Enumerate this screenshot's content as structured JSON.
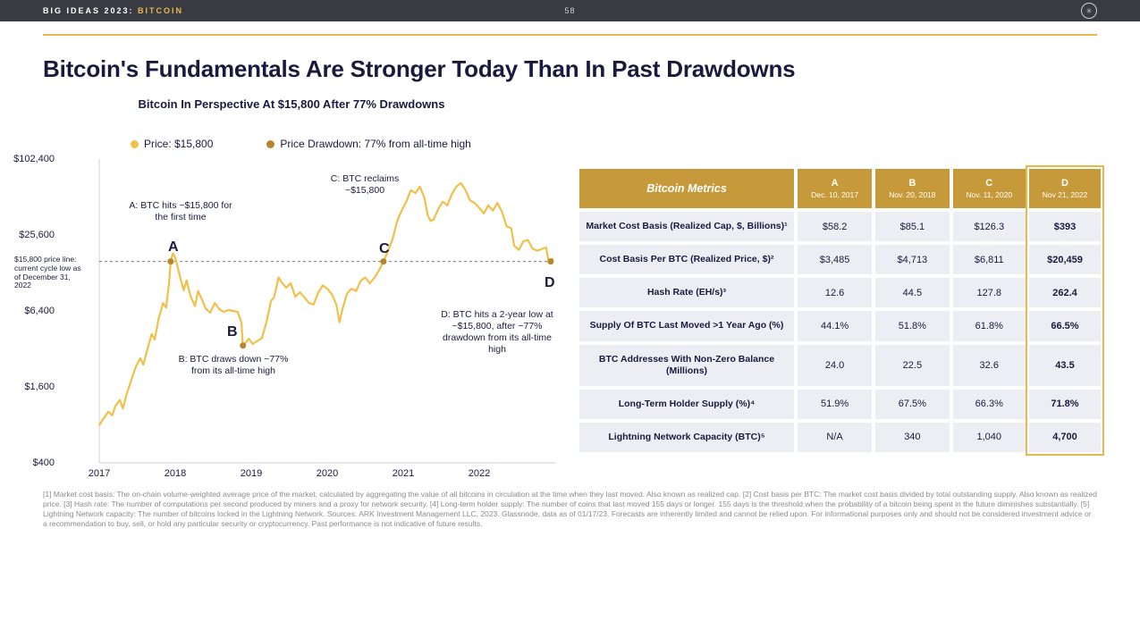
{
  "header": {
    "series": "BIG IDEAS 2023",
    "topic": "BITCOIN",
    "page": "58"
  },
  "title": "Bitcoin's Fundamentals Are Stronger Today Than In Past Drawdowns",
  "chart": {
    "type": "line",
    "title": "Bitcoin In Perspective At $15,800 After 77% Drawdowns",
    "legend_price": "Price: $15,800",
    "legend_drawdown": "Price Drawdown: 77% from all-time high",
    "price_color": "#f0c04a",
    "drawdown_color": "#b5872a",
    "axis_color": "#1a1a3e",
    "grid_color": "#cfcfd4",
    "dash_color": "#7a7a7a",
    "background_color": "#ffffff",
    "line_width": 2.2,
    "y_scale": "log",
    "y_ticks": [
      "$400",
      "$1,600",
      "$6,400",
      "$25,600",
      "$102,400"
    ],
    "y_tick_vals": [
      400,
      1600,
      6400,
      25600,
      102400
    ],
    "x_ticks": [
      "2017",
      "2018",
      "2019",
      "2020",
      "2021",
      "2022"
    ],
    "reference_line_value": 15800,
    "side_note": "$15,800 price line: current cycle low as of December 31, 2022",
    "markers": {
      "style": "circle",
      "size": 7,
      "fill": "#b5872a"
    },
    "annotations": {
      "A_letter": "A",
      "A_text": "A: BTC hits ~$15,800 for the first time",
      "B_letter": "B",
      "B_text": "B: BTC draws down ~77% from its all-time high",
      "C_letter": "C",
      "C_text": "C: BTC reclaims ~$15,800",
      "D_letter": "D",
      "D_text": "D: BTC hits a 2-year low at ~$15,800, after ~77% drawdown from its all-time high"
    },
    "price_series": [
      [
        0.0,
        790
      ],
      [
        0.04,
        870
      ],
      [
        0.08,
        940
      ],
      [
        0.12,
        1020
      ],
      [
        0.17,
        950
      ],
      [
        0.21,
        1120
      ],
      [
        0.27,
        1260
      ],
      [
        0.31,
        1080
      ],
      [
        0.36,
        1400
      ],
      [
        0.42,
        1800
      ],
      [
        0.48,
        2300
      ],
      [
        0.54,
        2700
      ],
      [
        0.58,
        2400
      ],
      [
        0.63,
        3100
      ],
      [
        0.69,
        4200
      ],
      [
        0.73,
        3800
      ],
      [
        0.78,
        5500
      ],
      [
        0.84,
        7400
      ],
      [
        0.88,
        6800
      ],
      [
        0.92,
        10800
      ],
      [
        0.94,
        15800
      ],
      [
        0.97,
        18300
      ],
      [
        1.0,
        17000
      ],
      [
        1.05,
        12800
      ],
      [
        1.11,
        9300
      ],
      [
        1.15,
        11200
      ],
      [
        1.2,
        8400
      ],
      [
        1.26,
        7000
      ],
      [
        1.3,
        9200
      ],
      [
        1.35,
        7900
      ],
      [
        1.4,
        6700
      ],
      [
        1.46,
        6200
      ],
      [
        1.52,
        7400
      ],
      [
        1.58,
        6600
      ],
      [
        1.64,
        6300
      ],
      [
        1.7,
        6500
      ],
      [
        1.76,
        6400
      ],
      [
        1.82,
        6300
      ],
      [
        1.87,
        5200
      ],
      [
        1.89,
        3400
      ],
      [
        1.93,
        3600
      ],
      [
        1.97,
        3850
      ],
      [
        2.02,
        3500
      ],
      [
        2.08,
        3700
      ],
      [
        2.14,
        3900
      ],
      [
        2.2,
        5200
      ],
      [
        2.26,
        7700
      ],
      [
        2.3,
        8200
      ],
      [
        2.36,
        11800
      ],
      [
        2.4,
        10800
      ],
      [
        2.46,
        9800
      ],
      [
        2.52,
        10600
      ],
      [
        2.58,
        8300
      ],
      [
        2.64,
        9000
      ],
      [
        2.7,
        8200
      ],
      [
        2.76,
        7400
      ],
      [
        2.82,
        7200
      ],
      [
        2.88,
        8900
      ],
      [
        2.94,
        10200
      ],
      [
        3.0,
        9600
      ],
      [
        3.06,
        8700
      ],
      [
        3.12,
        7200
      ],
      [
        3.16,
        5200
      ],
      [
        3.2,
        6600
      ],
      [
        3.26,
        8800
      ],
      [
        3.32,
        9600
      ],
      [
        3.38,
        9200
      ],
      [
        3.44,
        11100
      ],
      [
        3.5,
        11800
      ],
      [
        3.56,
        10600
      ],
      [
        3.62,
        11700
      ],
      [
        3.68,
        13400
      ],
      [
        3.74,
        15800
      ],
      [
        3.8,
        19100
      ],
      [
        3.86,
        23800
      ],
      [
        3.92,
        33000
      ],
      [
        3.98,
        40000
      ],
      [
        4.04,
        47000
      ],
      [
        4.1,
        58000
      ],
      [
        4.16,
        55000
      ],
      [
        4.22,
        62000
      ],
      [
        4.28,
        50000
      ],
      [
        4.32,
        37000
      ],
      [
        4.36,
        33000
      ],
      [
        4.4,
        34000
      ],
      [
        4.46,
        41000
      ],
      [
        4.52,
        47000
      ],
      [
        4.58,
        44000
      ],
      [
        4.64,
        54000
      ],
      [
        4.7,
        62000
      ],
      [
        4.76,
        66000
      ],
      [
        4.82,
        58000
      ],
      [
        4.88,
        48000
      ],
      [
        4.94,
        46000
      ],
      [
        5.0,
        42000
      ],
      [
        5.06,
        38000
      ],
      [
        5.12,
        44000
      ],
      [
        5.18,
        40000
      ],
      [
        5.24,
        46000
      ],
      [
        5.3,
        39000
      ],
      [
        5.36,
        30000
      ],
      [
        5.42,
        29000
      ],
      [
        5.46,
        21000
      ],
      [
        5.52,
        19500
      ],
      [
        5.58,
        22800
      ],
      [
        5.64,
        23400
      ],
      [
        5.7,
        20000
      ],
      [
        5.76,
        19200
      ],
      [
        5.82,
        19800
      ],
      [
        5.88,
        20400
      ],
      [
        5.91,
        16200
      ],
      [
        5.94,
        15800
      ],
      [
        5.97,
        16800
      ]
    ],
    "drawdown_points": [
      [
        0.94,
        15800
      ],
      [
        1.89,
        3400
      ],
      [
        3.74,
        15800
      ],
      [
        5.94,
        15800
      ]
    ]
  },
  "table": {
    "header_main": "Bitcoin Metrics",
    "cols": [
      {
        "letter": "A",
        "date": "Dec. 10, 2017"
      },
      {
        "letter": "B",
        "date": "Nov. 20, 2018"
      },
      {
        "letter": "C",
        "date": "Nov. 11, 2020"
      },
      {
        "letter": "D",
        "date": "Nov 21, 2022"
      }
    ],
    "rows": [
      {
        "name": "Market Cost Basis (Realized Cap, $, Billions)¹",
        "a": "$58.2",
        "b": "$85.1",
        "c": "$126.3",
        "d": "$393"
      },
      {
        "name": "Cost Basis Per BTC (Realized Price, $)²",
        "a": "$3,485",
        "b": "$4,713",
        "c": "$6,811",
        "d": "$20,459"
      },
      {
        "name": "Hash Rate (EH/s)³",
        "a": "12.6",
        "b": "44.5",
        "c": "127.8",
        "d": "262.4"
      },
      {
        "name": "Supply Of BTC Last Moved >1 Year Ago (%)",
        "a": "44.1%",
        "b": "51.8%",
        "c": "61.8%",
        "d": "66.5%"
      },
      {
        "name": "BTC Addresses With Non-Zero Balance (Millions)",
        "a": "24.0",
        "b": "22.5",
        "c": "32.6",
        "d": "43.5"
      },
      {
        "name": "Long-Term Holder Supply (%)⁴",
        "a": "51.9%",
        "b": "67.5%",
        "c": "66.3%",
        "d": "71.8%"
      },
      {
        "name": "Lightning Network Capacity (BTC)⁵",
        "a": "N/A",
        "b": "340",
        "c": "1,040",
        "d": "4,700"
      }
    ],
    "header_bg": "#c69a3a",
    "cell_bg": "#eceef3",
    "highlight_border_color": "#e8b84e"
  },
  "footnotes": "[1] Market cost basis: The on-chain volume-weighted average price of the market, calculated by aggregating the value of all bitcoins in circulation at the time when they last moved. Also known as realized cap. [2] Cost basis per BTC: The market cost basis divided by total outstanding supply. Also known as realized price. [3] Hash rate: The number of computations per second produced by miners and a proxy for network security. [4] Long-term holder supply: The number of coins that last moved 155 days or longer. 155 days is the threshold when the probability of a bitcoin being spent in the future diminishes substantially. [5] Lightning Network capacity: The number of bitcoins locked in the Lightning Network. Sources: ARK Investment Management LLC, 2023. Glassnode, data as of 01/17/23. Forecasts are inherently limited and cannot be relied upon. For informational purposes only and should not be considered investment advice or a recommendation to buy, sell, or hold any particular security or cryptocurrency. Past performance is not indicative of future results."
}
